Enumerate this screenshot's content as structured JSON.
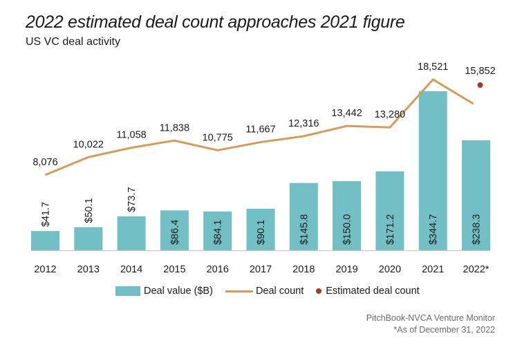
{
  "chart_data": {
    "type": "bar",
    "title": "2022 estimated deal count approaches 2021 figure",
    "subtitle": "US VC deal activity",
    "xlabel": "",
    "ylabel": "",
    "categories": [
      "2012",
      "2013",
      "2014",
      "2015",
      "2016",
      "2017",
      "2018",
      "2019",
      "2020",
      "2021",
      "2022*"
    ],
    "series": [
      {
        "name": "Deal value ($B)",
        "type": "bar",
        "color": "#72bfc5",
        "values": [
          41.7,
          50.1,
          73.7,
          86.4,
          84.1,
          90.1,
          145.8,
          150.0,
          171.2,
          344.7,
          238.3
        ],
        "labels": [
          "$41.7",
          "$50.1",
          "$73.7",
          "$86.4",
          "$84.1",
          "$90.1",
          "$145.8",
          "$150.0",
          "$171.2",
          "$344.7",
          "$238.3"
        ]
      },
      {
        "name": "Deal count",
        "type": "line",
        "color": "#d99b56",
        "values": [
          8076,
          10022,
          11058,
          11838,
          10775,
          11667,
          12316,
          13442,
          13280,
          18521,
          null
        ],
        "labels": [
          "8,076",
          "10,022",
          "11,058",
          "11,838",
          "10,775",
          "11,667",
          "12,316",
          "13,442",
          "13,280",
          "18,521",
          ""
        ]
      },
      {
        "name": "Estimated deal count",
        "type": "scatter",
        "color": "#a83a22",
        "values": [
          null,
          null,
          null,
          null,
          null,
          null,
          null,
          null,
          null,
          null,
          15852
        ],
        "labels": [
          "",
          "",
          "",
          "",
          "",
          "",
          "",
          "",
          "",
          "",
          "15,852"
        ]
      }
    ],
    "legend": [
      "Deal value ($B)",
      "Deal count",
      "Estimated deal count"
    ],
    "legend_position": "bottom",
    "grid": false
  },
  "source": {
    "line1": "PitchBook-NVCA Venture Monitor",
    "line2": "*As of December 31, 2022"
  }
}
